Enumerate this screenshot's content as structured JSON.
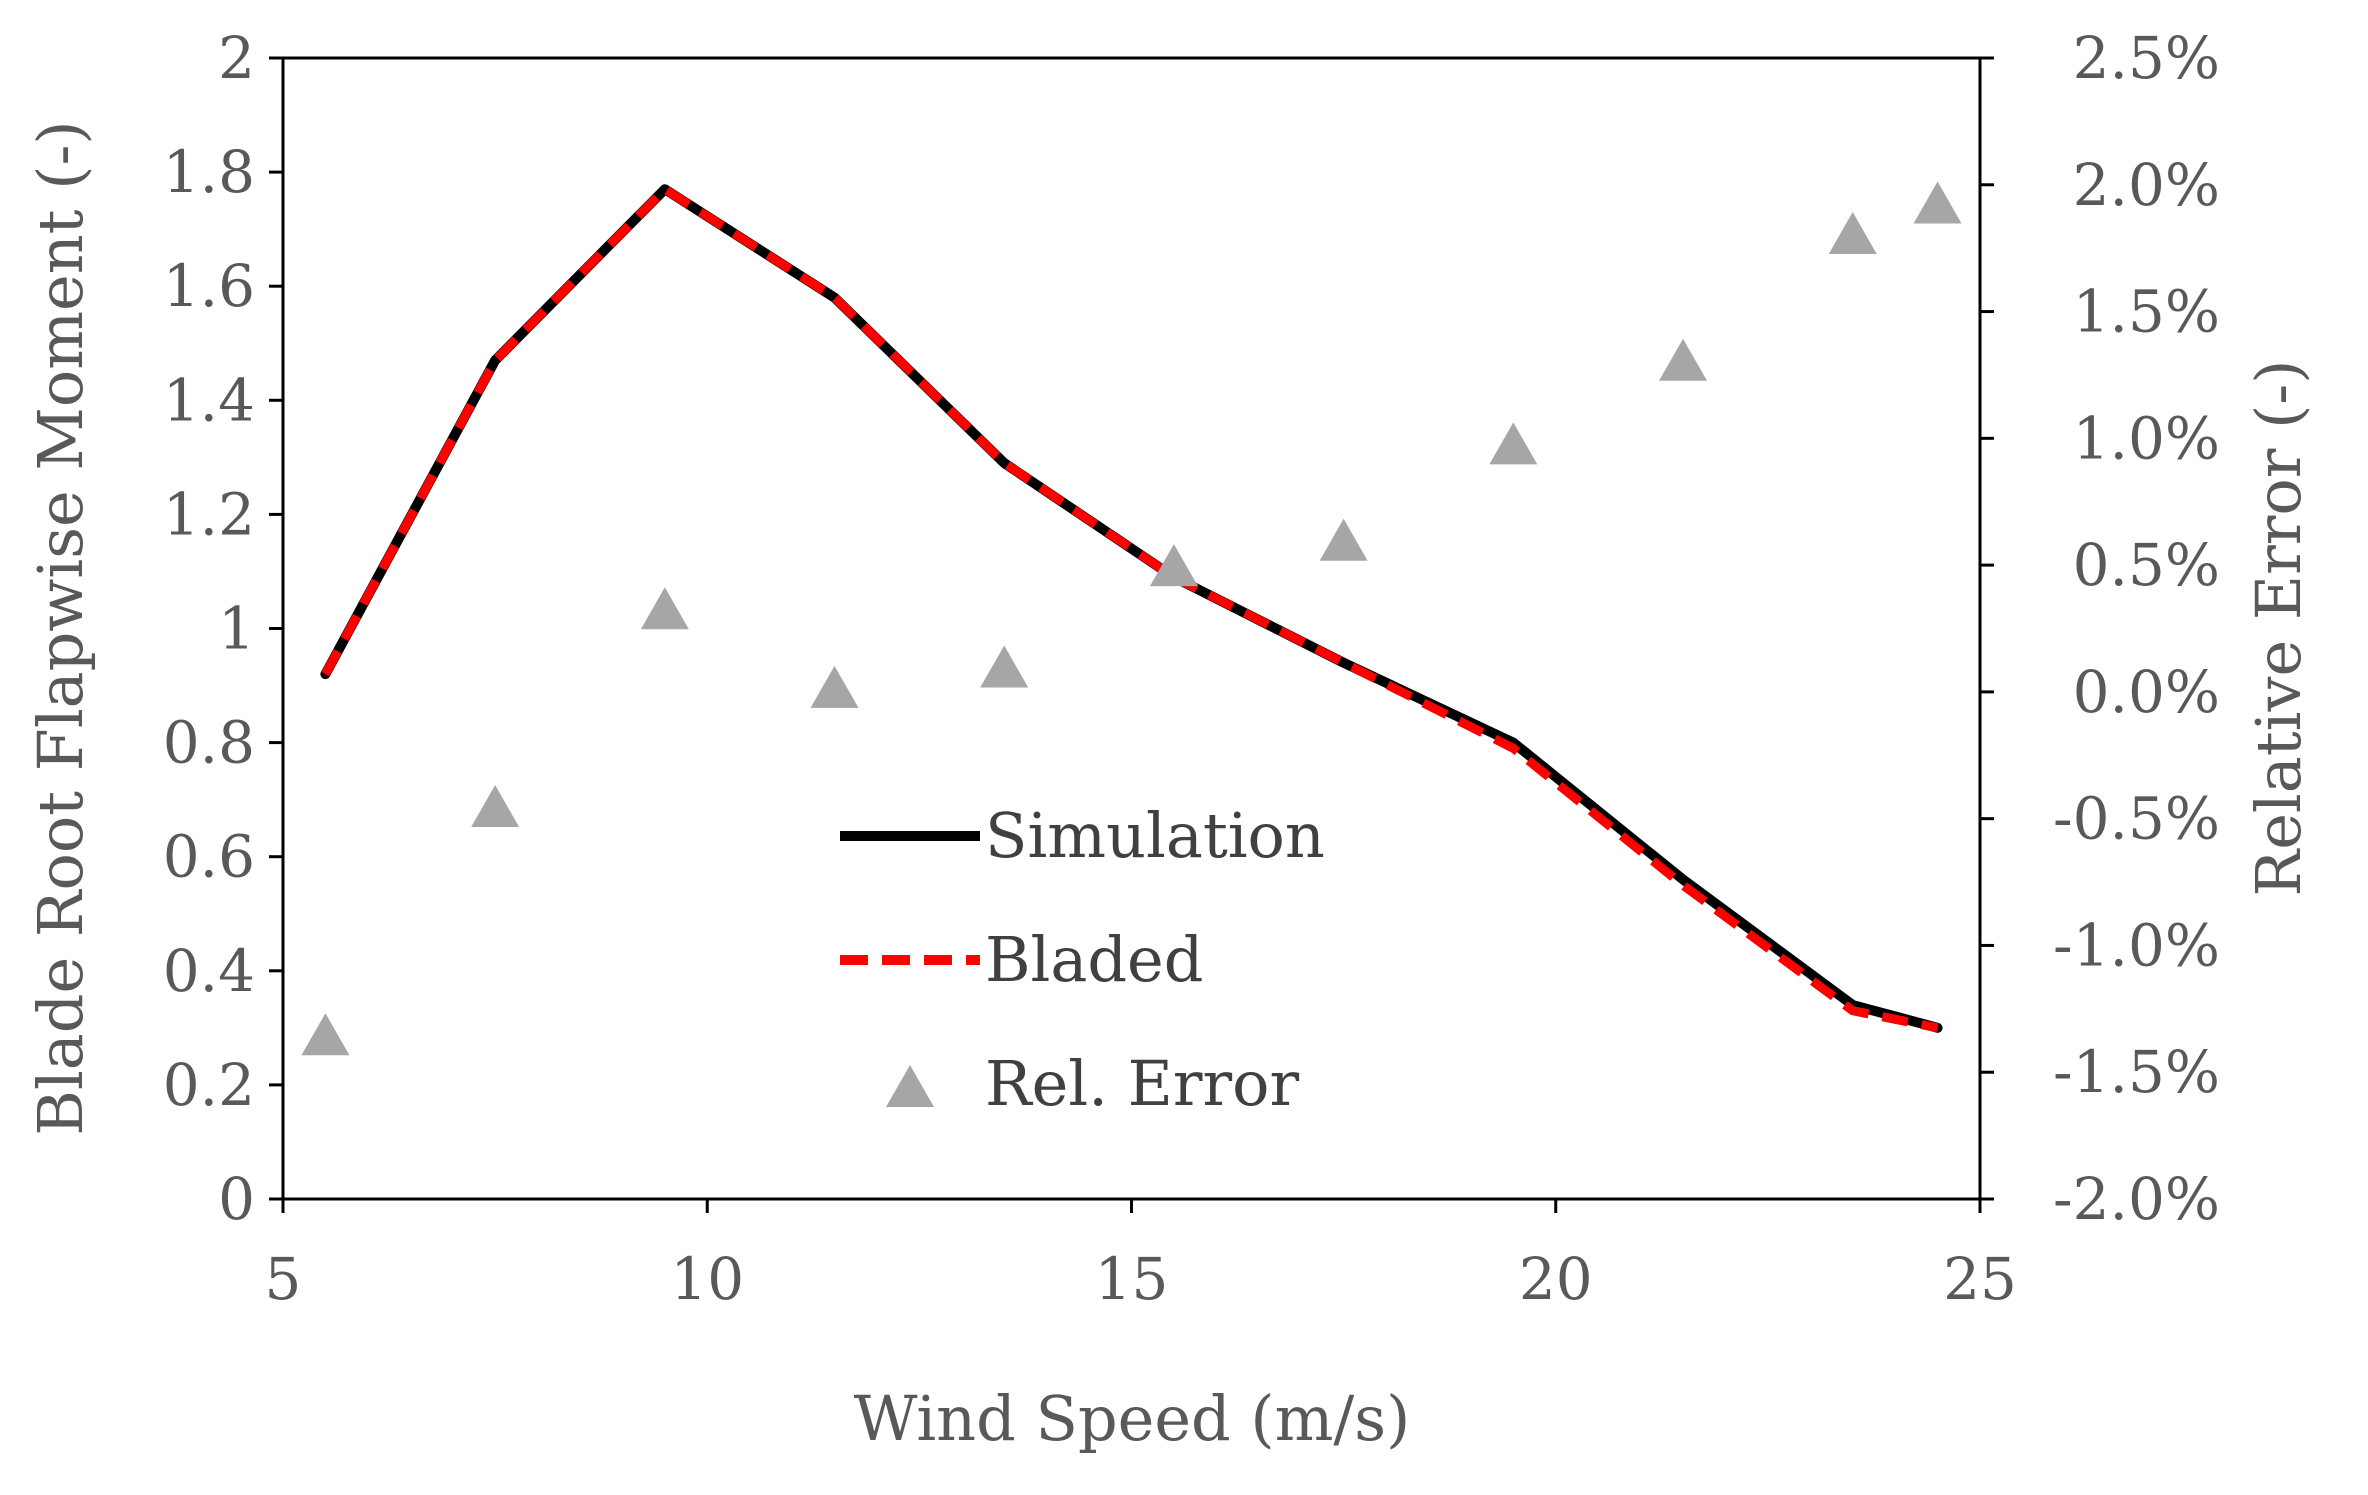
{
  "chart_data": {
    "type": "line",
    "x": [
      5.5,
      7.5,
      9.5,
      11.5,
      13.5,
      15.5,
      17.5,
      19.5,
      21.5,
      23.5,
      24.5
    ],
    "series": [
      {
        "name": "Simulation",
        "axis": "left",
        "style": "solid",
        "color": "#000000",
        "values": [
          0.92,
          1.47,
          1.77,
          1.58,
          1.29,
          1.09,
          0.94,
          0.8,
          0.56,
          0.34,
          0.3
        ]
      },
      {
        "name": "Bladed",
        "axis": "left",
        "style": "dashed",
        "color": "#ff0000",
        "values": [
          0.92,
          1.47,
          1.77,
          1.58,
          1.29,
          1.09,
          0.94,
          0.79,
          0.55,
          0.33,
          0.3
        ]
      },
      {
        "name": "Rel. Error",
        "axis": "right",
        "style": "marker-triangle",
        "color": "#a6a6a6",
        "values": [
          -1.35,
          -0.45,
          0.33,
          0.02,
          0.1,
          0.5,
          0.6,
          0.98,
          1.31,
          1.81,
          1.93
        ]
      }
    ],
    "xlabel": "Wind Speed (m/s)",
    "ylabel": "Blade Root Flapwise Moment (-)",
    "y2label": "Relative Error (-)",
    "xlim": [
      5,
      25
    ],
    "ylim": [
      0,
      2
    ],
    "y2lim": [
      -2.0,
      2.5
    ],
    "xticks": [
      "5",
      "10",
      "15",
      "20",
      "25"
    ],
    "yticks": [
      "0",
      "0.2",
      "0.4",
      "0.6",
      "0.8",
      "1",
      "1.2",
      "1.4",
      "1.6",
      "1.8",
      "2"
    ],
    "y2ticks": [
      "-2.0%",
      "-1.5%",
      "-1.0%",
      "-0.5%",
      "0.0%",
      "0.5%",
      "1.0%",
      "1.5%",
      "2.0%",
      "2.5%"
    ],
    "legend": {
      "position": "center-bottom",
      "entries": [
        "Simulation",
        "Bladed",
        "Rel. Error"
      ]
    }
  }
}
